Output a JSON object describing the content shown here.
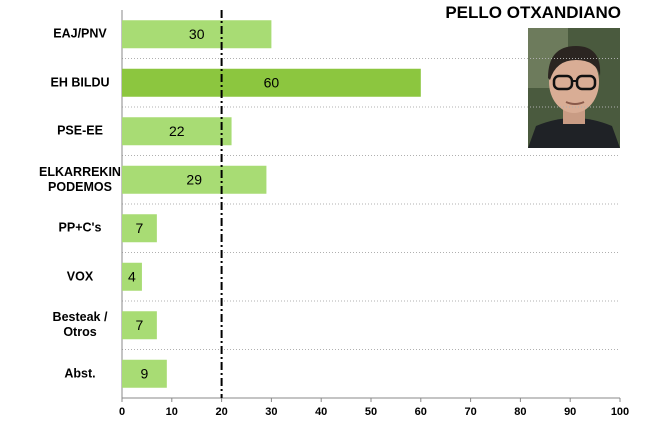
{
  "chart_data": {
    "type": "hbar",
    "title": "PELLO OTXANDIANO",
    "categories": [
      "EAJ/PNV",
      "EH BILDU",
      "PSE-EE",
      "ELKARREKIN PODEMOS",
      "PP+C's",
      "VOX",
      "Besteak / Otros",
      "Abst."
    ],
    "values": [
      30,
      60,
      22,
      29,
      7,
      4,
      7,
      9
    ],
    "colors": [
      "#a8dc74",
      "#8cc63f",
      "#a8dc74",
      "#a8dc74",
      "#a8dc74",
      "#a8dc74",
      "#a8dc74",
      "#a8dc74"
    ],
    "xlim": [
      0,
      100
    ],
    "xticks": [
      0,
      10,
      20,
      30,
      40,
      50,
      60,
      70,
      80,
      90,
      100
    ],
    "reference_x": 20
  }
}
